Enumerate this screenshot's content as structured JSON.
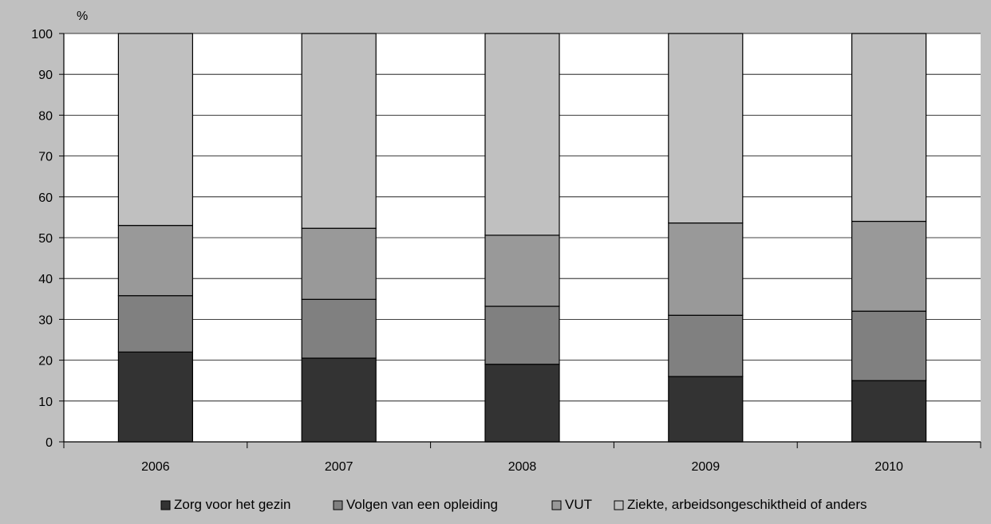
{
  "chart_data": {
    "type": "bar",
    "stacked": true,
    "ylabel": "%",
    "ylim": [
      0,
      100
    ],
    "yticks": [
      0,
      10,
      20,
      30,
      40,
      50,
      60,
      70,
      80,
      90,
      100
    ],
    "grid": true,
    "legend_position": "bottom",
    "categories": [
      "2006",
      "2007",
      "2008",
      "2009",
      "2010"
    ],
    "series": [
      {
        "name": "Zorg voor het gezin",
        "color": "#333333",
        "values": [
          22,
          20.5,
          19,
          16,
          15
        ]
      },
      {
        "name": "Volgen van een opleiding",
        "color": "#808080",
        "values": [
          13.8,
          14.4,
          14.2,
          15,
          17
        ]
      },
      {
        "name": "VUT",
        "color": "#999999",
        "values": [
          17.2,
          17.4,
          17.4,
          22.6,
          22
        ]
      },
      {
        "name": "Ziekte, arbeidsongeschiktheid of anders",
        "color": "#c0c0c0",
        "values": [
          47,
          47.7,
          49.4,
          46.4,
          46
        ]
      }
    ]
  }
}
